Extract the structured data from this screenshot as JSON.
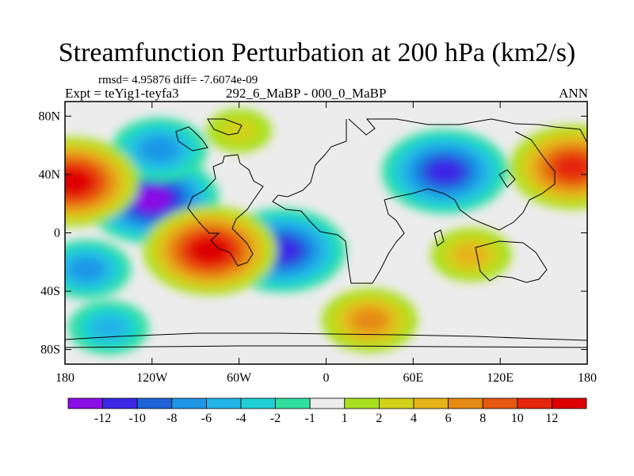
{
  "header": {
    "title": "Streamfunction Perturbation at 200 hPa (km2/s)",
    "stats": "rmsd= 4.95876 diff= -7.6074e-09",
    "experiment": "Expt = teYig1-teyfa3",
    "comparison": "292_6_MaBP - 000_0_MaBP",
    "season": "ANN"
  },
  "map": {
    "projection": "cylindrical equidistant",
    "lon_range": [
      -180,
      180
    ],
    "lat_range": [
      -90,
      90
    ],
    "lon_ticks": [
      {
        "value": -180,
        "label": "180"
      },
      {
        "value": -120,
        "label": "120W"
      },
      {
        "value": -60,
        "label": "60W"
      },
      {
        "value": 0,
        "label": "0"
      },
      {
        "value": 60,
        "label": "60E"
      },
      {
        "value": 120,
        "label": "120E"
      },
      {
        "value": 180,
        "label": "180"
      }
    ],
    "lat_ticks": [
      {
        "value": 80,
        "label": "80N"
      },
      {
        "value": 40,
        "label": "40N"
      },
      {
        "value": 0,
        "label": "0"
      },
      {
        "value": -40,
        "label": "40S"
      },
      {
        "value": -80,
        "label": "80S"
      }
    ],
    "field_features": [
      {
        "lon": -120,
        "lat": 23,
        "value": -12
      },
      {
        "lon": 82,
        "lat": 42,
        "value": -11
      },
      {
        "lon": -30,
        "lat": -12,
        "value": -11
      },
      {
        "lon": -115,
        "lat": 57,
        "value": -7
      },
      {
        "lon": -165,
        "lat": -25,
        "value": -6
      },
      {
        "lon": -175,
        "lat": 35,
        "value": 12
      },
      {
        "lon": 170,
        "lat": 45,
        "value": 11
      },
      {
        "lon": -80,
        "lat": -12,
        "value": 12
      },
      {
        "lon": 30,
        "lat": -60,
        "value": 7
      },
      {
        "lon": 100,
        "lat": -15,
        "value": 5
      },
      {
        "lon": -150,
        "lat": -65,
        "value": -5
      },
      {
        "lon": -60,
        "lat": 70,
        "value": 3
      }
    ]
  },
  "colorbar": {
    "labels": [
      "-12",
      "-10",
      "-8",
      "-6",
      "-4",
      "-2",
      "-1",
      "1",
      "2",
      "4",
      "6",
      "8",
      "10",
      "12"
    ],
    "colors": [
      "#8a0ee6",
      "#3a28e6",
      "#1f63d9",
      "#1f95e6",
      "#22b4e6",
      "#1fd0d6",
      "#2fe0a0",
      "#ececec",
      "#a8e01f",
      "#d2d21a",
      "#e6b41a",
      "#e68a14",
      "#e6580f",
      "#e6250c",
      "#dd0000"
    ]
  }
}
